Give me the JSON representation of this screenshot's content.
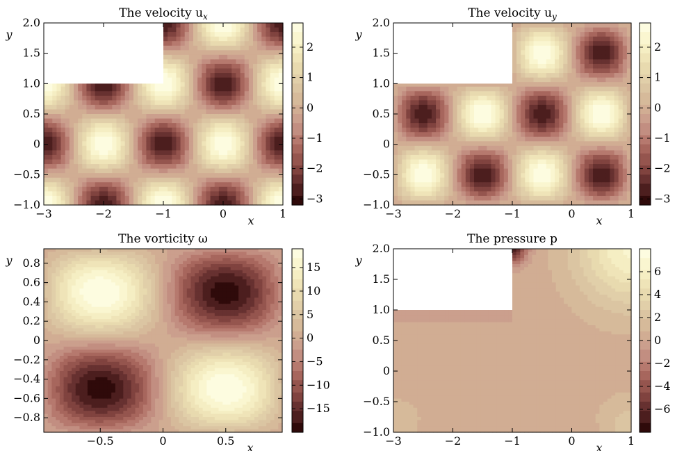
{
  "colormap": [
    "#200000",
    "#5a2828",
    "#8c4c46",
    "#b06e64",
    "#c8988a",
    "#d4b496",
    "#ddcaa6",
    "#ecdfb2",
    "#f8f3c8",
    "#ffffe8"
  ],
  "chart_data": [
    {
      "type": "heatmap",
      "title": "The velocity u",
      "title_sub": "x",
      "xlabel": "x",
      "ylabel": "y",
      "xlim": [
        -3,
        1
      ],
      "ylim": [
        -1,
        2
      ],
      "xticks": [
        -3,
        -2,
        -1,
        0,
        1
      ],
      "xtick_labels": [
        "−3",
        "−2",
        "−1",
        "0",
        "1"
      ],
      "yticks": [
        -1,
        -0.5,
        0,
        0.5,
        1,
        1.5,
        2
      ],
      "ytick_labels": [
        "−1.0",
        "−0.5",
        "0",
        "0.5",
        "1.0",
        "1.5",
        "2.0"
      ],
      "vmin": -3.2,
      "vmax": 2.8,
      "colorbar_ticks": [
        2,
        1,
        0,
        -1,
        -2,
        -3
      ],
      "colorbar_labels": [
        "2",
        "1",
        "0",
        "−1",
        "−2",
        "−3"
      ],
      "masked_region": {
        "x": [
          -3,
          -1
        ],
        "y": [
          1,
          2
        ]
      },
      "field": "ux"
    },
    {
      "type": "heatmap",
      "title": "The velocity u",
      "title_sub": "y",
      "xlabel": "x",
      "ylabel": "y",
      "xlim": [
        -3,
        1
      ],
      "ylim": [
        -1,
        2
      ],
      "xticks": [
        -3,
        -2,
        -1,
        0,
        1
      ],
      "xtick_labels": [
        "−3",
        "−2",
        "−1",
        "0",
        "1"
      ],
      "yticks": [
        -1,
        -0.5,
        0,
        0.5,
        1,
        1.5,
        2
      ],
      "ytick_labels": [
        "−1.0",
        "−0.5",
        "0",
        "0.5",
        "1.0",
        "1.5",
        "2.0"
      ],
      "vmin": -3.2,
      "vmax": 2.8,
      "colorbar_ticks": [
        2,
        1,
        0,
        -1,
        -2,
        -3
      ],
      "colorbar_labels": [
        "2",
        "1",
        "0",
        "−1",
        "−2",
        "−3"
      ],
      "masked_region": {
        "x": [
          -3,
          -1
        ],
        "y": [
          1,
          2
        ]
      },
      "field": "uy"
    },
    {
      "type": "heatmap",
      "title": "The vorticity ω",
      "title_sub": "",
      "xlabel": "x",
      "ylabel": "y",
      "xlim": [
        -0.95,
        0.95
      ],
      "ylim": [
        -0.95,
        0.95
      ],
      "xticks": [
        -0.5,
        0,
        0.5
      ],
      "xtick_labels": [
        "−0.5",
        "0",
        "0.5"
      ],
      "yticks": [
        -0.8,
        -0.6,
        -0.4,
        -0.2,
        0,
        0.2,
        0.4,
        0.6,
        0.8
      ],
      "ytick_labels": [
        "−0.8",
        "−0.6",
        "−0.4",
        "−0.2",
        "0",
        "0.2",
        "0.4",
        "0.6",
        "0.8"
      ],
      "vmin": -20,
      "vmax": 19,
      "colorbar_ticks": [
        15,
        10,
        5,
        0,
        -5,
        -10,
        -15
      ],
      "colorbar_labels": [
        "15",
        "10",
        "5",
        "0",
        "−5",
        "−10",
        "−15"
      ],
      "masked_region": null,
      "field": "omega"
    },
    {
      "type": "heatmap",
      "title": "The pressure p",
      "title_sub": "",
      "xlabel": "x",
      "ylabel": "y",
      "xlim": [
        -3,
        1
      ],
      "ylim": [
        -1,
        2
      ],
      "xticks": [
        -3,
        -2,
        -1,
        0,
        1
      ],
      "xtick_labels": [
        "−3",
        "−2",
        "−1",
        "0",
        "1"
      ],
      "yticks": [
        -1,
        -0.5,
        0,
        0.5,
        1,
        1.5,
        2
      ],
      "ytick_labels": [
        "−1.0",
        "−0.5",
        "0",
        "0.5",
        "1.0",
        "1.5",
        "2.0"
      ],
      "vmin": -8,
      "vmax": 8,
      "colorbar_ticks": [
        6,
        4,
        2,
        0,
        -2,
        -4,
        -6
      ],
      "colorbar_labels": [
        "6",
        "4",
        "2",
        "0",
        "−2",
        "−4",
        "−6"
      ],
      "masked_region": {
        "x": [
          -3,
          -1
        ],
        "y": [
          1,
          2
        ]
      },
      "field": "p"
    }
  ]
}
